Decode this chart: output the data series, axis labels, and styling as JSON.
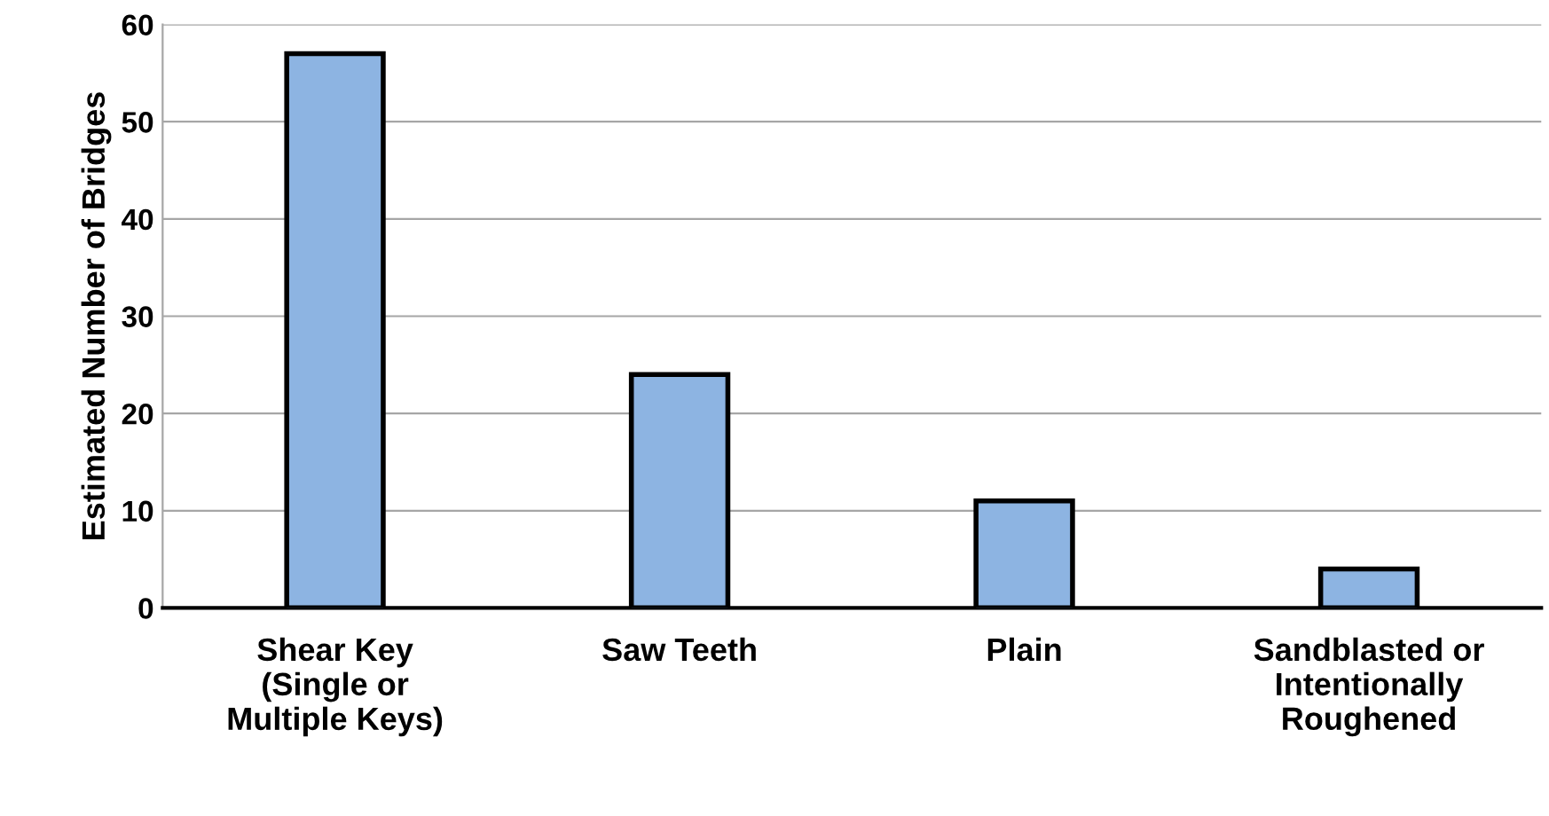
{
  "chart_data": {
    "type": "bar",
    "ylabel": "Estimated Number of Bridges",
    "categories": [
      "Shear Key\n(Single or\nMultiple Keys)",
      "Saw Teeth",
      "Plain",
      "Sandblasted or\nIntentionally\nRoughened"
    ],
    "values": [
      57,
      24,
      11,
      4
    ],
    "color": "#8db4e2",
    "ylim": [
      0,
      60
    ],
    "yticks": [
      0,
      10,
      20,
      30,
      40,
      50,
      60
    ],
    "grid": "y",
    "legend": false
  }
}
